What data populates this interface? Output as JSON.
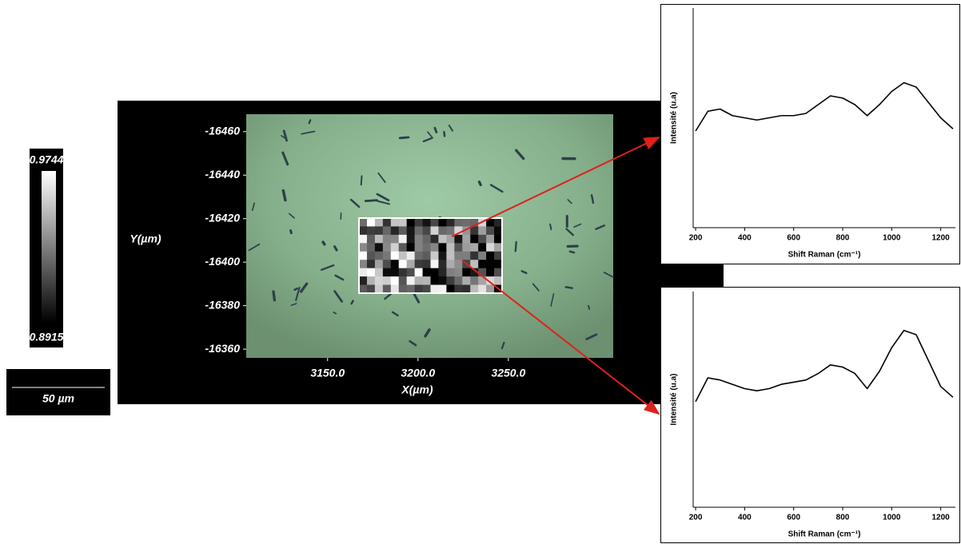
{
  "chart_data": [
    {
      "type": "image",
      "xlabel": "X(µm)",
      "ylabel": "Y(µm)",
      "xlim": [
        3105,
        3308
      ],
      "xticks": [
        {
          "value": 3150,
          "label": "3150.0"
        },
        {
          "value": 3200,
          "label": "3200.0"
        },
        {
          "value": 3250,
          "label": "3250.0"
        }
      ],
      "ylim": [
        -16356,
        -16468
      ],
      "yticks": [
        -16460,
        -16440,
        -16420,
        -16400,
        -16380,
        -16360
      ],
      "colorbar": {
        "max": 0.9744,
        "min": 0.8915
      },
      "scale_bar": "50 µm"
    },
    {
      "type": "line",
      "xlabel": "Shift Raman (cm⁻¹)",
      "ylabel": "Intensité (u.a)",
      "xlim": [
        190,
        1260
      ],
      "xticks": [
        200,
        400,
        600,
        800,
        1000,
        1200
      ],
      "ylim": [
        0,
        100
      ],
      "color": "#000000",
      "x": [
        200,
        250,
        300,
        350,
        400,
        450,
        500,
        550,
        600,
        650,
        700,
        750,
        800,
        850,
        900,
        950,
        1000,
        1050,
        1100,
        1150,
        1200,
        1250
      ],
      "values": [
        44,
        53,
        54,
        51,
        50,
        49,
        50,
        51,
        51,
        52,
        56,
        60,
        59,
        56,
        51,
        56,
        62,
        66,
        64,
        57,
        50,
        45
      ]
    },
    {
      "type": "line",
      "xlabel": "Shift Raman (cm⁻¹)",
      "ylabel": "Intensité (u.a)",
      "xlim": [
        190,
        1260
      ],
      "xticks": [
        200,
        400,
        600,
        800,
        1000,
        1200
      ],
      "ylim": [
        0,
        100
      ],
      "color": "#000000",
      "x": [
        200,
        250,
        300,
        350,
        400,
        450,
        500,
        550,
        600,
        650,
        700,
        750,
        800,
        850,
        900,
        950,
        1000,
        1050,
        1100,
        1150,
        1200,
        1250
      ],
      "values": [
        49,
        60,
        59,
        57,
        55,
        54,
        55,
        57,
        58,
        59,
        62,
        66,
        65,
        62,
        55,
        63,
        74,
        82,
        80,
        68,
        56,
        51
      ]
    }
  ]
}
